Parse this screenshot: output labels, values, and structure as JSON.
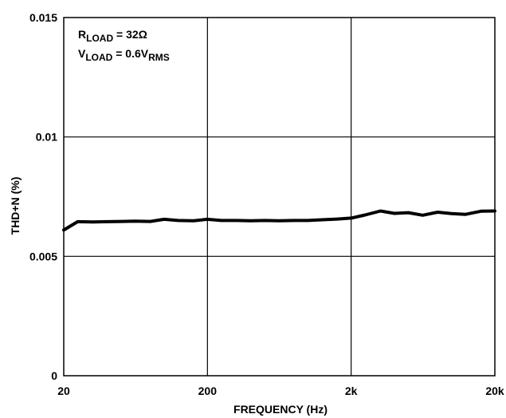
{
  "chart_data": {
    "type": "line",
    "xscale": "log",
    "xlim": [
      20,
      20000
    ],
    "ylim": [
      0,
      0.015
    ],
    "x_ticks": [
      {
        "value": 20,
        "label": "20"
      },
      {
        "value": 200,
        "label": "200"
      },
      {
        "value": 2000,
        "label": "2k"
      },
      {
        "value": 20000,
        "label": "20k"
      }
    ],
    "y_ticks": [
      {
        "value": 0,
        "label": "0"
      },
      {
        "value": 0.005,
        "label": "0.005"
      },
      {
        "value": 0.01,
        "label": "0.01"
      },
      {
        "value": 0.015,
        "label": "0.015"
      }
    ],
    "xlabel": "FREQUENCY (Hz)",
    "ylabel": "THD+N (%)",
    "grid": true,
    "annotations": {
      "line1": {
        "main": "R",
        "sub": "LOAD",
        "rest": " = 32Ω"
      },
      "line2": {
        "main": "V",
        "sub": "LOAD",
        "rest": " = 0.6V",
        "sub2": "RMS"
      }
    },
    "series": [
      {
        "color": "#000000",
        "x": [
          20,
          25,
          32,
          40,
          50,
          63,
          80,
          100,
          125,
          160,
          200,
          250,
          320,
          400,
          500,
          630,
          800,
          1000,
          1250,
          1600,
          2000,
          2500,
          3200,
          4000,
          5000,
          6300,
          8000,
          10000,
          12500,
          16000,
          20000
        ],
        "y": [
          0.0061,
          0.00645,
          0.00644,
          0.00645,
          0.00646,
          0.00647,
          0.00646,
          0.00655,
          0.0065,
          0.00649,
          0.00655,
          0.0065,
          0.0065,
          0.00649,
          0.0065,
          0.00649,
          0.0065,
          0.0065,
          0.00653,
          0.00656,
          0.0066,
          0.00673,
          0.0069,
          0.0068,
          0.00683,
          0.00672,
          0.00685,
          0.00679,
          0.00676,
          0.00689,
          0.0069
        ]
      }
    ]
  }
}
